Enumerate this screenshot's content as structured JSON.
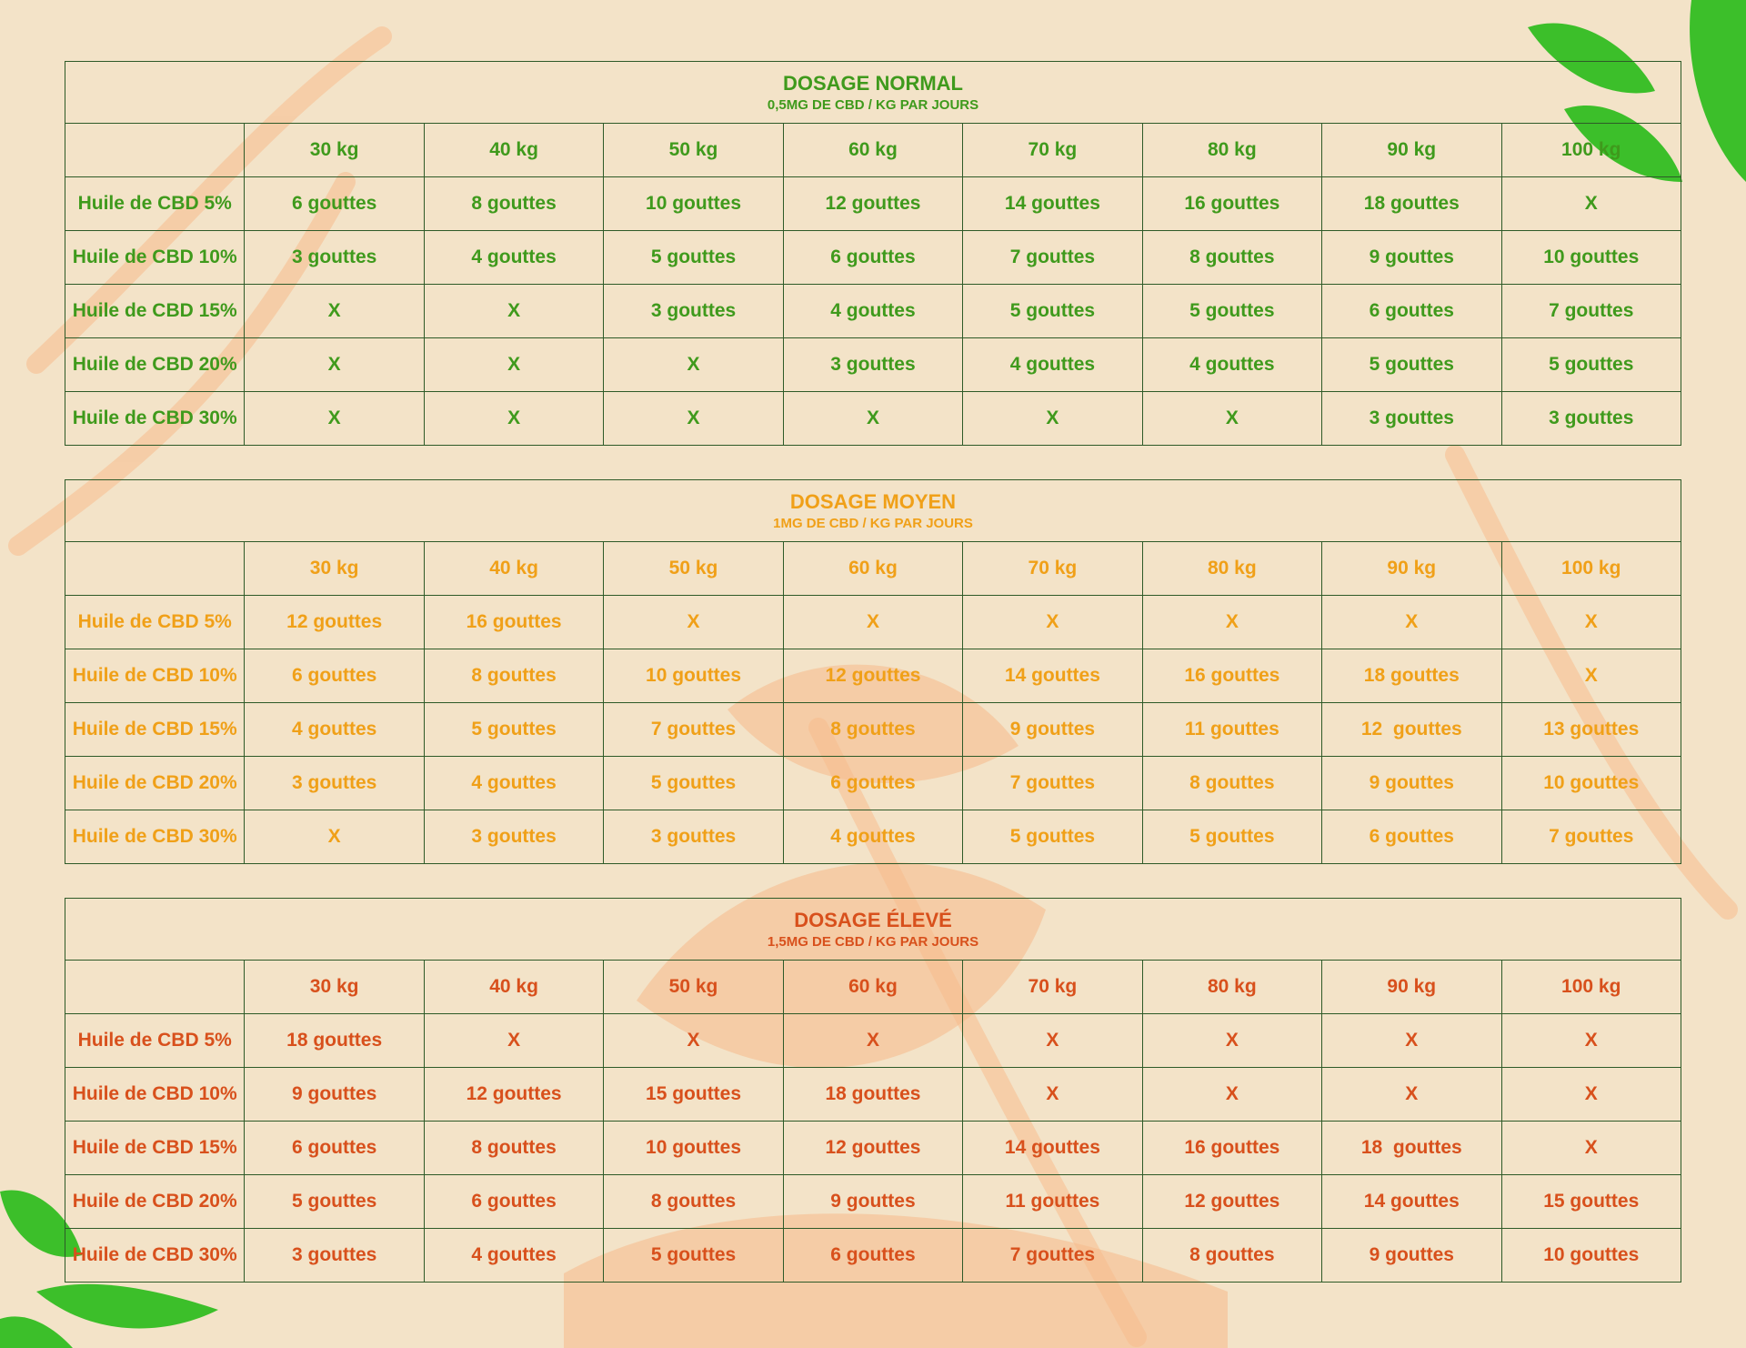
{
  "tables": [
    {
      "title": "DOSAGE NORMAL",
      "subtitle": "0,5MG DE CBD / KG PAR JOURS",
      "color": "#3f9a1c",
      "columns": [
        "30 kg",
        "40 kg",
        "50 kg",
        "60 kg",
        "70 kg",
        "80 kg",
        "90 kg",
        "100 kg"
      ],
      "rows": [
        {
          "label": "Huile de CBD 5%",
          "cells": [
            "6 gouttes",
            "8 gouttes",
            "10 gouttes",
            "12 gouttes",
            "14 gouttes",
            "16 gouttes",
            "18 gouttes",
            "X"
          ]
        },
        {
          "label": "Huile de CBD 10%",
          "cells": [
            "3 gouttes",
            "4 gouttes",
            "5 gouttes",
            "6 gouttes",
            "7 gouttes",
            "8 gouttes",
            "9 gouttes",
            "10 gouttes"
          ]
        },
        {
          "label": "Huile de CBD 15%",
          "cells": [
            "X",
            "X",
            "3 gouttes",
            "4 gouttes",
            "5 gouttes",
            "5 gouttes",
            "6 gouttes",
            "7 gouttes"
          ]
        },
        {
          "label": "Huile de CBD 20%",
          "cells": [
            "X",
            "X",
            "X",
            "3 gouttes",
            "4 gouttes",
            "4 gouttes",
            "5 gouttes",
            "5 gouttes"
          ]
        },
        {
          "label": "Huile de CBD 30%",
          "cells": [
            "X",
            "X",
            "X",
            "X",
            "X",
            "X",
            "3 gouttes",
            "3 gouttes"
          ]
        }
      ]
    },
    {
      "title": "DOSAGE MOYEN",
      "subtitle": "1MG DE CBD / KG PAR JOURS",
      "color": "#f0a018",
      "columns": [
        "30 kg",
        "40 kg",
        "50 kg",
        "60 kg",
        "70 kg",
        "80 kg",
        "90 kg",
        "100 kg"
      ],
      "rows": [
        {
          "label": "Huile de CBD 5%",
          "cells": [
            "12 gouttes",
            "16 gouttes",
            "X",
            "X",
            "X",
            "X",
            "X",
            "X"
          ]
        },
        {
          "label": "Huile de CBD 10%",
          "cells": [
            "6 gouttes",
            "8 gouttes",
            "10 gouttes",
            "12 gouttes",
            "14 gouttes",
            "16 gouttes",
            "18 gouttes",
            "X"
          ]
        },
        {
          "label": "Huile de CBD 15%",
          "cells": [
            "4 gouttes",
            "5 gouttes",
            "7 gouttes",
            "8 gouttes",
            "9 gouttes",
            "11 gouttes",
            "12  gouttes",
            "13 gouttes"
          ]
        },
        {
          "label": "Huile de CBD 20%",
          "cells": [
            "3 gouttes",
            "4 gouttes",
            "5 gouttes",
            "6 gouttes",
            "7 gouttes",
            "8 gouttes",
            "9 gouttes",
            "10 gouttes"
          ]
        },
        {
          "label": "Huile de CBD 30%",
          "cells": [
            "X",
            "3 gouttes",
            "3 gouttes",
            "4 gouttes",
            "5 gouttes",
            "5 gouttes",
            "6 gouttes",
            "7 gouttes"
          ]
        }
      ]
    },
    {
      "title": "DOSAGE ÉLEVÉ",
      "subtitle": "1,5MG DE CBD / KG PAR JOURS",
      "color": "#d8501c",
      "columns": [
        "30 kg",
        "40 kg",
        "50 kg",
        "60 kg",
        "70 kg",
        "80 kg",
        "90 kg",
        "100 kg"
      ],
      "rows": [
        {
          "label": "Huile de CBD 5%",
          "cells": [
            "18 gouttes",
            "X",
            "X",
            "X",
            "X",
            "X",
            "X",
            "X"
          ]
        },
        {
          "label": "Huile de CBD 10%",
          "cells": [
            "9 gouttes",
            "12 gouttes",
            "15 gouttes",
            "18 gouttes",
            "X",
            "X",
            "X",
            "X"
          ]
        },
        {
          "label": "Huile de CBD 15%",
          "cells": [
            "6 gouttes",
            "8 gouttes",
            "10 gouttes",
            "12 gouttes",
            "14 gouttes",
            "16 gouttes",
            "18  gouttes",
            "X"
          ]
        },
        {
          "label": "Huile de CBD 20%",
          "cells": [
            "5 gouttes",
            "6 gouttes",
            "8 gouttes",
            "9 gouttes",
            "11 gouttes",
            "12 gouttes",
            "14 gouttes",
            "15 gouttes"
          ]
        },
        {
          "label": "Huile de CBD 30%",
          "cells": [
            "3 gouttes",
            "4 gouttes",
            "5 gouttes",
            "6 gouttes",
            "7 gouttes",
            "8 gouttes",
            "9 gouttes",
            "10 gouttes"
          ]
        }
      ]
    }
  ]
}
